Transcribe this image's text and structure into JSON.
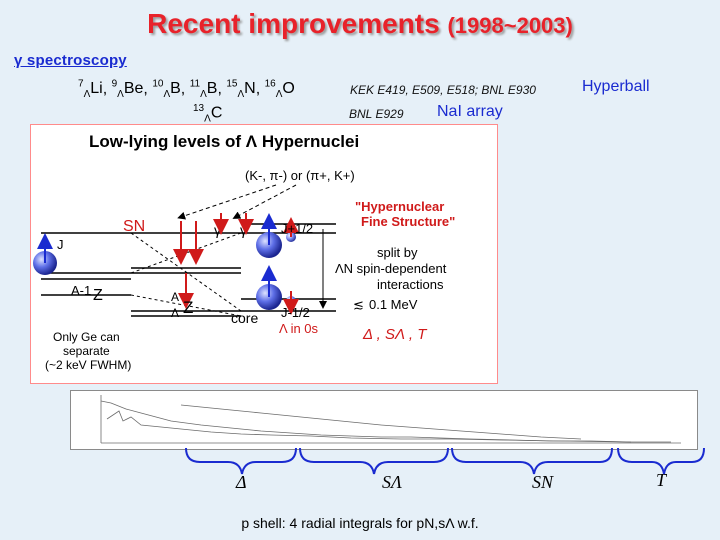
{
  "title": {
    "main": "Recent improvements",
    "years": "(1998~2003)"
  },
  "section": {
    "heading": "γ spectroscopy"
  },
  "hyperball_row": {
    "nuclei": [
      {
        "a": "7",
        "el": "Li"
      },
      {
        "a": "9",
        "el": "Be"
      },
      {
        "a": "10",
        "el": "B"
      },
      {
        "a": "11",
        "el": "B"
      },
      {
        "a": "15",
        "el": "N"
      },
      {
        "a": "16",
        "el": "O"
      }
    ],
    "experiments": "KEK E419, E509, E518; BNL E930",
    "detector": "Hyperball"
  },
  "nai_row": {
    "nucleus": {
      "a": "13",
      "el": "C"
    },
    "experiments": "BNL E929",
    "detector": "NaI array"
  },
  "diagram": {
    "title": "Low-lying levels of Λ Hypernuclei",
    "reaction": "(K-, π-) or (π+, K+)",
    "label_j": "J",
    "label_core_state": "A-1",
    "label_core_state_el": "Z",
    "label_hyper_a": "A",
    "label_hyper_el": "Z",
    "label_core": "core",
    "label_sn": "SN",
    "gamma": "γ",
    "j_plus": "J+1/2",
    "j_minus": "J-1/2",
    "lambda_0s": "Λ in 0s",
    "fine_structure_1": "\"Hypernuclear",
    "fine_structure_2": "Fine Structure\"",
    "split_1": "split by",
    "split_2": "ΛN spin-dependent",
    "split_3": "interactions",
    "split_4": "0.1 MeV",
    "params": "Δ ,  SΛ ,  T",
    "ge_1": "Only Ge can",
    "ge_2": "separate",
    "ge_3": "(~2 keV FWHM)"
  },
  "spectrum_labels": {
    "delta": "Δ",
    "s_lambda": "SΛ",
    "s_n": "SN",
    "t": "T"
  },
  "footer": "p shell: 4 radial integrals for pN,sΛ w.f.",
  "colors": {
    "title": "#e8222a",
    "heading": "#1a2bd0",
    "background": "#e6f0f8",
    "brace": "#1a2bd0"
  }
}
